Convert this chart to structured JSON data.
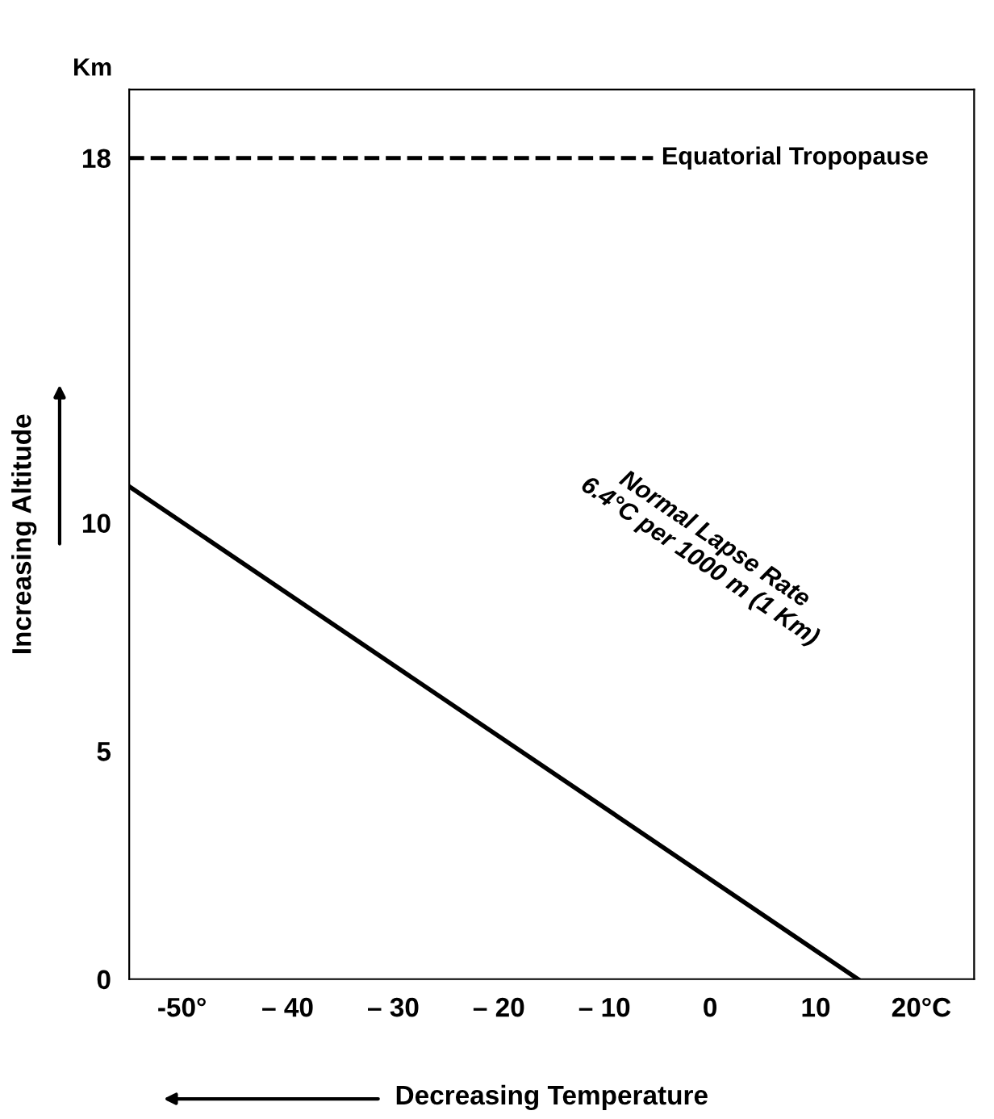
{
  "chart_data": {
    "type": "line",
    "xlabel": "Decreasing Temperature",
    "ylabel": "Increasing Altitude",
    "x": [
      -55,
      14
    ],
    "series": [
      {
        "color": "#000000",
        "values": [
          10.8,
          0
        ]
      }
    ],
    "xlim": [
      -55,
      25
    ],
    "ylim": [
      0,
      19.5
    ],
    "xticks": [
      {
        "value": -50,
        "label": "-50°"
      },
      {
        "value": -40,
        "label": "– 40"
      },
      {
        "value": -30,
        "label": "– 30"
      },
      {
        "value": -20,
        "label": "– 20"
      },
      {
        "value": -10,
        "label": "– 10"
      },
      0,
      10,
      {
        "value": 20,
        "label": "20°C"
      }
    ],
    "yticks": [
      0,
      5,
      10,
      18
    ],
    "ref_lines": [
      {
        "axis": "y",
        "value": 18,
        "label": "Equatorial Tropopause",
        "color": "#000000",
        "line_style": "dashed"
      }
    ],
    "annotations": [
      "Km",
      "Normal Lapse Rate\n6.4°C per 1000 m (1 Km)"
    ],
    "grid": false,
    "legend": false,
    "marker": "none",
    "line_style": "solid"
  }
}
